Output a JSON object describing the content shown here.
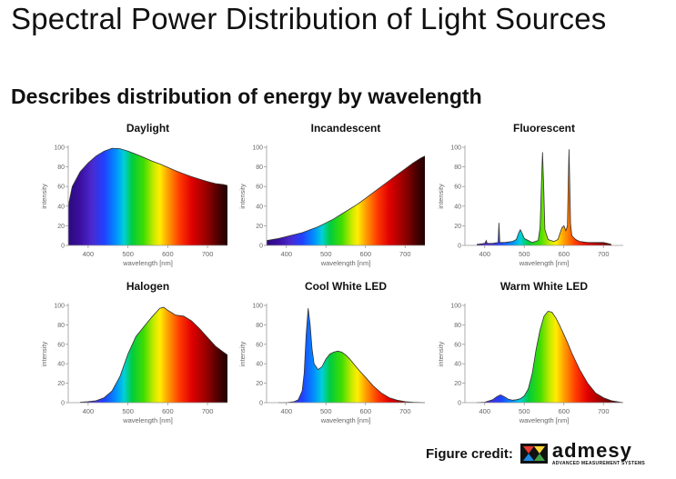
{
  "title": "Spectral Power Distribution of Light Sources",
  "subtitle": "Describes distribution of energy by wavelength",
  "credit": {
    "label": "Figure credit:",
    "logo_name": "admesy",
    "logo_tagline": "ADVANCED MEASUREMENT SYSTEMS"
  },
  "chart_data": [
    {
      "type": "area",
      "title": "Daylight",
      "xlabel": "wavelength [nm]",
      "ylabel": "intensity",
      "xlim": [
        350,
        750
      ],
      "ylim": [
        0,
        100
      ],
      "xticks": [
        400,
        500,
        600,
        700
      ],
      "yticks": [
        0,
        20,
        40,
        60,
        80,
        100
      ],
      "x": [
        350,
        360,
        380,
        400,
        420,
        440,
        460,
        480,
        500,
        520,
        540,
        560,
        580,
        600,
        620,
        640,
        660,
        680,
        700,
        720,
        740,
        750
      ],
      "y": [
        40,
        60,
        75,
        84,
        91,
        96,
        99,
        98.5,
        96,
        93,
        89.5,
        86,
        83,
        79.5,
        76,
        73,
        70,
        67.5,
        65,
        63,
        62,
        61
      ]
    },
    {
      "type": "area",
      "title": "Incandescent",
      "xlabel": "wavelength [nm]",
      "ylabel": "intensity",
      "xlim": [
        350,
        750
      ],
      "ylim": [
        0,
        100
      ],
      "xticks": [
        400,
        500,
        600,
        700
      ],
      "yticks": [
        0,
        20,
        40,
        60,
        80,
        100
      ],
      "x": [
        350,
        380,
        400,
        420,
        440,
        460,
        480,
        500,
        520,
        540,
        560,
        580,
        600,
        620,
        640,
        660,
        680,
        700,
        720,
        740,
        750
      ],
      "y": [
        5,
        7,
        9,
        11,
        13,
        16,
        19,
        23,
        27,
        32,
        37,
        42,
        48,
        54,
        60,
        66,
        72,
        78,
        84,
        89,
        91
      ]
    },
    {
      "type": "area",
      "title": "Fluorescent",
      "xlabel": "wavelength [nm]",
      "ylabel": "intensity",
      "xlim": [
        350,
        750
      ],
      "ylim": [
        0,
        100
      ],
      "xticks": [
        400,
        500,
        600,
        700
      ],
      "yticks": [
        0,
        20,
        40,
        60,
        80,
        100
      ],
      "x": [
        380,
        400,
        404,
        406,
        420,
        434,
        436,
        438,
        450,
        470,
        480,
        486,
        490,
        494,
        500,
        520,
        535,
        540,
        543,
        546,
        549,
        552,
        560,
        575,
        585,
        590,
        595,
        600,
        605,
        609,
        611,
        613,
        615,
        617,
        620,
        625,
        630,
        640,
        660,
        680,
        700,
        710,
        720
      ],
      "y": [
        1,
        2,
        5,
        2,
        2,
        3,
        23,
        3,
        3,
        4,
        6,
        13,
        16,
        13,
        7,
        3,
        5,
        18,
        60,
        95,
        60,
        16,
        6,
        4,
        6,
        12,
        18,
        20,
        15,
        20,
        60,
        98,
        60,
        22,
        10,
        8,
        6,
        4,
        3,
        3,
        3,
        2,
        1
      ]
    },
    {
      "type": "area",
      "title": "Halogen",
      "xlabel": "wavelength [nm]",
      "ylabel": "intensity",
      "xlim": [
        350,
        750
      ],
      "ylim": [
        0,
        100
      ],
      "xticks": [
        400,
        500,
        600,
        700
      ],
      "yticks": [
        0,
        20,
        40,
        60,
        80,
        100
      ],
      "x": [
        380,
        400,
        420,
        440,
        460,
        480,
        500,
        520,
        540,
        560,
        580,
        590,
        600,
        620,
        640,
        660,
        680,
        700,
        720,
        740,
        750
      ],
      "y": [
        0.5,
        1,
        2,
        5,
        12,
        27,
        50,
        68,
        78,
        88,
        97,
        98,
        95,
        90,
        89,
        84,
        76,
        67,
        58,
        52,
        49
      ]
    },
    {
      "type": "area",
      "title": "Cool White LED",
      "xlabel": "wavelength [nm]",
      "ylabel": "intensity",
      "xlim": [
        350,
        750
      ],
      "ylim": [
        0,
        100
      ],
      "xticks": [
        400,
        500,
        600,
        700
      ],
      "yticks": [
        0,
        20,
        40,
        60,
        80,
        100
      ],
      "x": [
        380,
        400,
        420,
        430,
        440,
        445,
        450,
        455,
        460,
        465,
        470,
        480,
        490,
        500,
        510,
        520,
        530,
        540,
        550,
        560,
        570,
        580,
        600,
        620,
        640,
        660,
        680,
        700,
        720,
        750
      ],
      "y": [
        0,
        0,
        1,
        3,
        12,
        30,
        70,
        97,
        80,
        55,
        40,
        34,
        37,
        45,
        50,
        52,
        53,
        52,
        49,
        45,
        40,
        35,
        26,
        17,
        10,
        5,
        2.5,
        1,
        0.5,
        0
      ]
    },
    {
      "type": "area",
      "title": "Warm White LED",
      "xlabel": "wavelength [nm]",
      "ylabel": "intensity",
      "xlim": [
        350,
        750
      ],
      "ylim": [
        0,
        100
      ],
      "xticks": [
        400,
        500,
        600,
        700
      ],
      "yticks": [
        0,
        20,
        40,
        60,
        80,
        100
      ],
      "x": [
        380,
        400,
        420,
        430,
        440,
        450,
        460,
        470,
        480,
        490,
        500,
        510,
        520,
        530,
        540,
        550,
        560,
        570,
        580,
        590,
        600,
        610,
        620,
        640,
        660,
        680,
        700,
        720,
        750
      ],
      "y": [
        0,
        0.5,
        3,
        6,
        8,
        6,
        3.5,
        2.5,
        3,
        4,
        7,
        14,
        30,
        55,
        75,
        89,
        94,
        93,
        87,
        79,
        70,
        61,
        51,
        34,
        20,
        10,
        5,
        2,
        0
      ]
    }
  ]
}
